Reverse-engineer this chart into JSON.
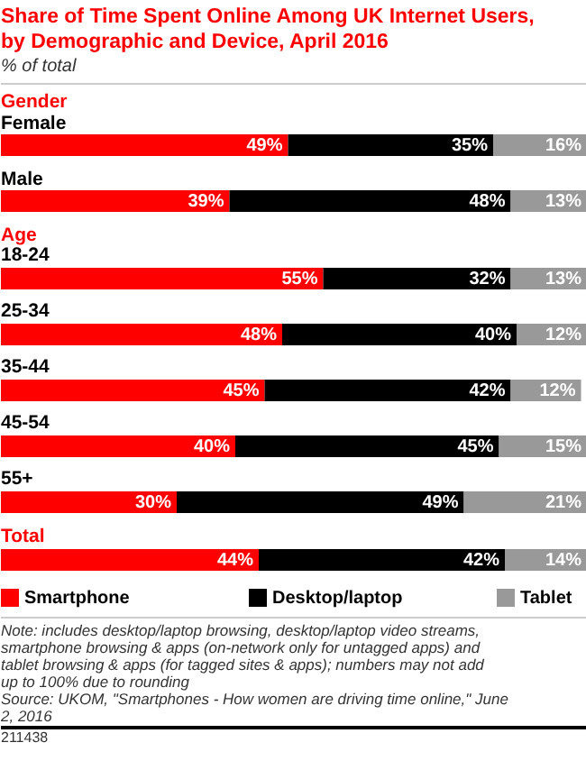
{
  "chart_data": {
    "type": "bar",
    "orientation": "horizontal",
    "stacked": true,
    "title": "Share of Time Spent Online Among UK Internet Users, by Demographic and Device, April 2016",
    "subtitle": "% of total",
    "categories": [
      "Gender",
      "Female",
      "Male",
      "Age",
      "18-24",
      "25-34",
      "35-44",
      "45-54",
      "55+",
      "Total",
      null
    ],
    "series": [
      {
        "name": "Smartphone",
        "color": "#ff0000",
        "values": [
          null,
          49,
          39,
          null,
          55,
          48,
          45,
          40,
          30,
          null,
          44
        ],
        "value_labels": [
          null,
          "49%",
          "39%",
          null,
          "55%",
          "48%",
          "45%",
          "40%",
          "30%",
          null,
          "44%"
        ]
      },
      {
        "name": "Desktop/laptop",
        "color": "#000000",
        "values": [
          null,
          35,
          48,
          null,
          32,
          40,
          42,
          45,
          49,
          null,
          42
        ],
        "value_labels": [
          null,
          "35%",
          "48%",
          null,
          "32%",
          "40%",
          "42%",
          "45%",
          "49%",
          null,
          "42%"
        ]
      },
      {
        "name": "Tablet",
        "color": "#999999",
        "values": [
          null,
          16,
          13,
          null,
          13,
          12,
          12,
          15,
          21,
          null,
          14
        ],
        "value_labels": [
          null,
          "16%",
          "13%",
          null,
          "13%",
          "12%",
          "12%",
          "15%",
          "21%",
          null,
          "14%"
        ]
      }
    ],
    "legend": "bottom",
    "grid": false,
    "annotations": [
      "Note: includes desktop/laptop browsing, desktop/laptop video streams, smartphone browsing & apps (on-network only for untagged apps) and tablet browsing & apps (for tagged sites & apps); numbers may not add up to 100% due to rounding",
      "Source: UKOM, \"Smartphones - How women are driving time online,\" June 2, 2016",
      "211438"
    ]
  }
}
